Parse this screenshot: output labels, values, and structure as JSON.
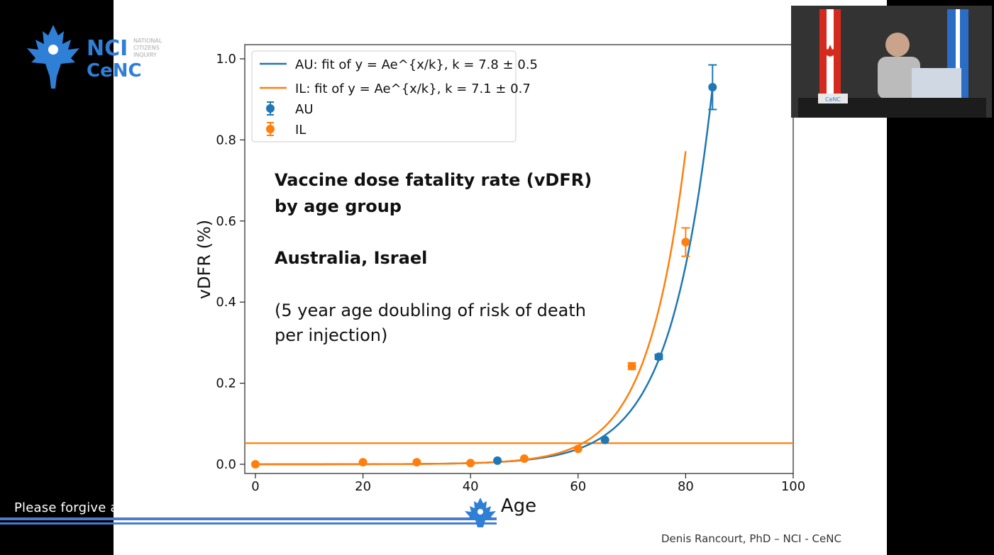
{
  "logo": {
    "line1": "NCI",
    "line2": "CeNC",
    "line3": "NATIONAL",
    "line4": "CITIZENS",
    "line5": "INQUIRY"
  },
  "banner": {
    "text": "Please forgive any delays and bear with us while we translate..."
  },
  "credit": "Denis Rancourt, PhD  –  NCI - CeNC",
  "video": {
    "nameplate": "CeNC"
  },
  "colors": {
    "au": "#1f77b4",
    "il": "#ff7f0e",
    "brand": "#2f7fd6"
  },
  "chart_data": {
    "type": "scatter",
    "xlabel": "Age",
    "ylabel": "vDFR (%)",
    "xlim": [
      0,
      100
    ],
    "ylim": [
      0,
      1.0
    ],
    "xticks": [
      0,
      20,
      40,
      60,
      80,
      100
    ],
    "yticks": [
      0.0,
      0.2,
      0.4,
      0.6,
      0.8,
      1.0
    ],
    "xtick_labels": [
      "0",
      "20",
      "40",
      "60",
      "80",
      "100"
    ],
    "ytick_labels": [
      "0.0",
      "0.2",
      "0.4",
      "0.6",
      "0.8",
      "1.0"
    ],
    "hline": 0.052,
    "annotation": {
      "title1": "Vaccine dose fatality rate (vDFR)",
      "title2": "by age group",
      "countries": "Australia, Israel",
      "note1": "(5 year age doubling of risk of death",
      "note2": "per injection)"
    },
    "legend": {
      "placement": "top-left",
      "fit_au": "AU: fit of y = Ae^{x/k}, k = 7.8 ± 0.5",
      "fit_il": "IL: fit of y = Ae^{x/k}, k = 7.1 ± 0.7",
      "au": "AU",
      "il": "IL"
    },
    "series": [
      {
        "name": "AU",
        "x": [
          45,
          65,
          75,
          85
        ],
        "y": [
          0.009,
          0.06,
          0.265,
          0.93
        ],
        "yerr": [
          0.002,
          0.003,
          0.006,
          0.055
        ],
        "fit": {
          "k": 7.8,
          "x_end": 85,
          "y_end": 0.93
        }
      },
      {
        "name": "IL",
        "x": [
          0,
          20,
          30,
          40,
          50,
          60,
          70,
          80
        ],
        "y": [
          0.0,
          0.005,
          0.005,
          0.003,
          0.014,
          0.038,
          0.242,
          0.548
        ],
        "yerr": [
          0.002,
          0.002,
          0.002,
          0.002,
          0.002,
          0.003,
          0.008,
          0.035
        ],
        "fit": {
          "k": 7.1,
          "x_end": 80,
          "y_end": 0.772
        }
      }
    ]
  }
}
